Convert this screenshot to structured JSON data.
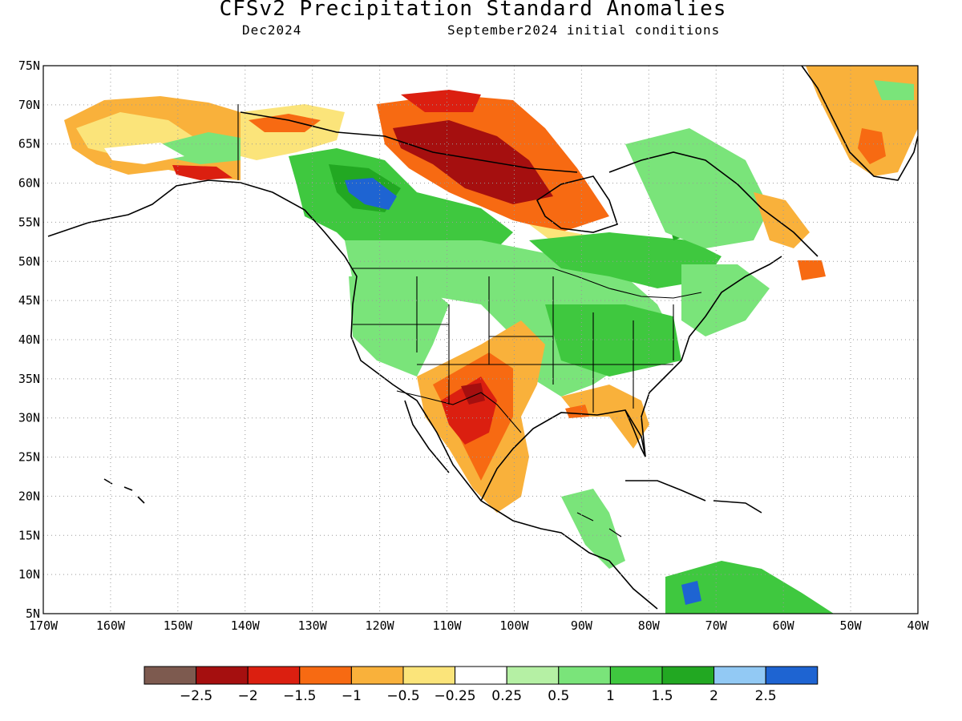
{
  "header": {
    "title": "CFSv2 Precipitation Standard Anomalies",
    "valid_month": "Dec2024",
    "init_conditions": "September2024 initial conditions"
  },
  "map": {
    "projection": "cylindrical equidistant",
    "lon_range": [
      -170,
      -40
    ],
    "lat_range": [
      5,
      75
    ],
    "grid_lines": "dotted",
    "lat_labels": [
      "75N",
      "70N",
      "65N",
      "60N",
      "55N",
      "50N",
      "45N",
      "40N",
      "35N",
      "30N",
      "25N",
      "20N",
      "15N",
      "10N",
      "5N"
    ],
    "lon_labels": [
      "170W",
      "160W",
      "150W",
      "140W",
      "130W",
      "120W",
      "110W",
      "100W",
      "90W",
      "80W",
      "70W",
      "60W",
      "50W",
      "40W"
    ]
  },
  "colorbar": {
    "colors": [
      "#7d5a4f",
      "#a50f0f",
      "#db1f10",
      "#f76a12",
      "#f9b13b",
      "#fbe47a",
      "#ffffff",
      "#b5f0a4",
      "#7ae47a",
      "#3fc83f",
      "#22a822",
      "#92c9f4",
      "#1e64d2"
    ],
    "labels": [
      "-2.5",
      "-2",
      "-1.5",
      "-1",
      "-0.5",
      "-0.25",
      "0.25",
      "0.5",
      "1",
      "1.5",
      "2",
      "2.5"
    ]
  }
}
